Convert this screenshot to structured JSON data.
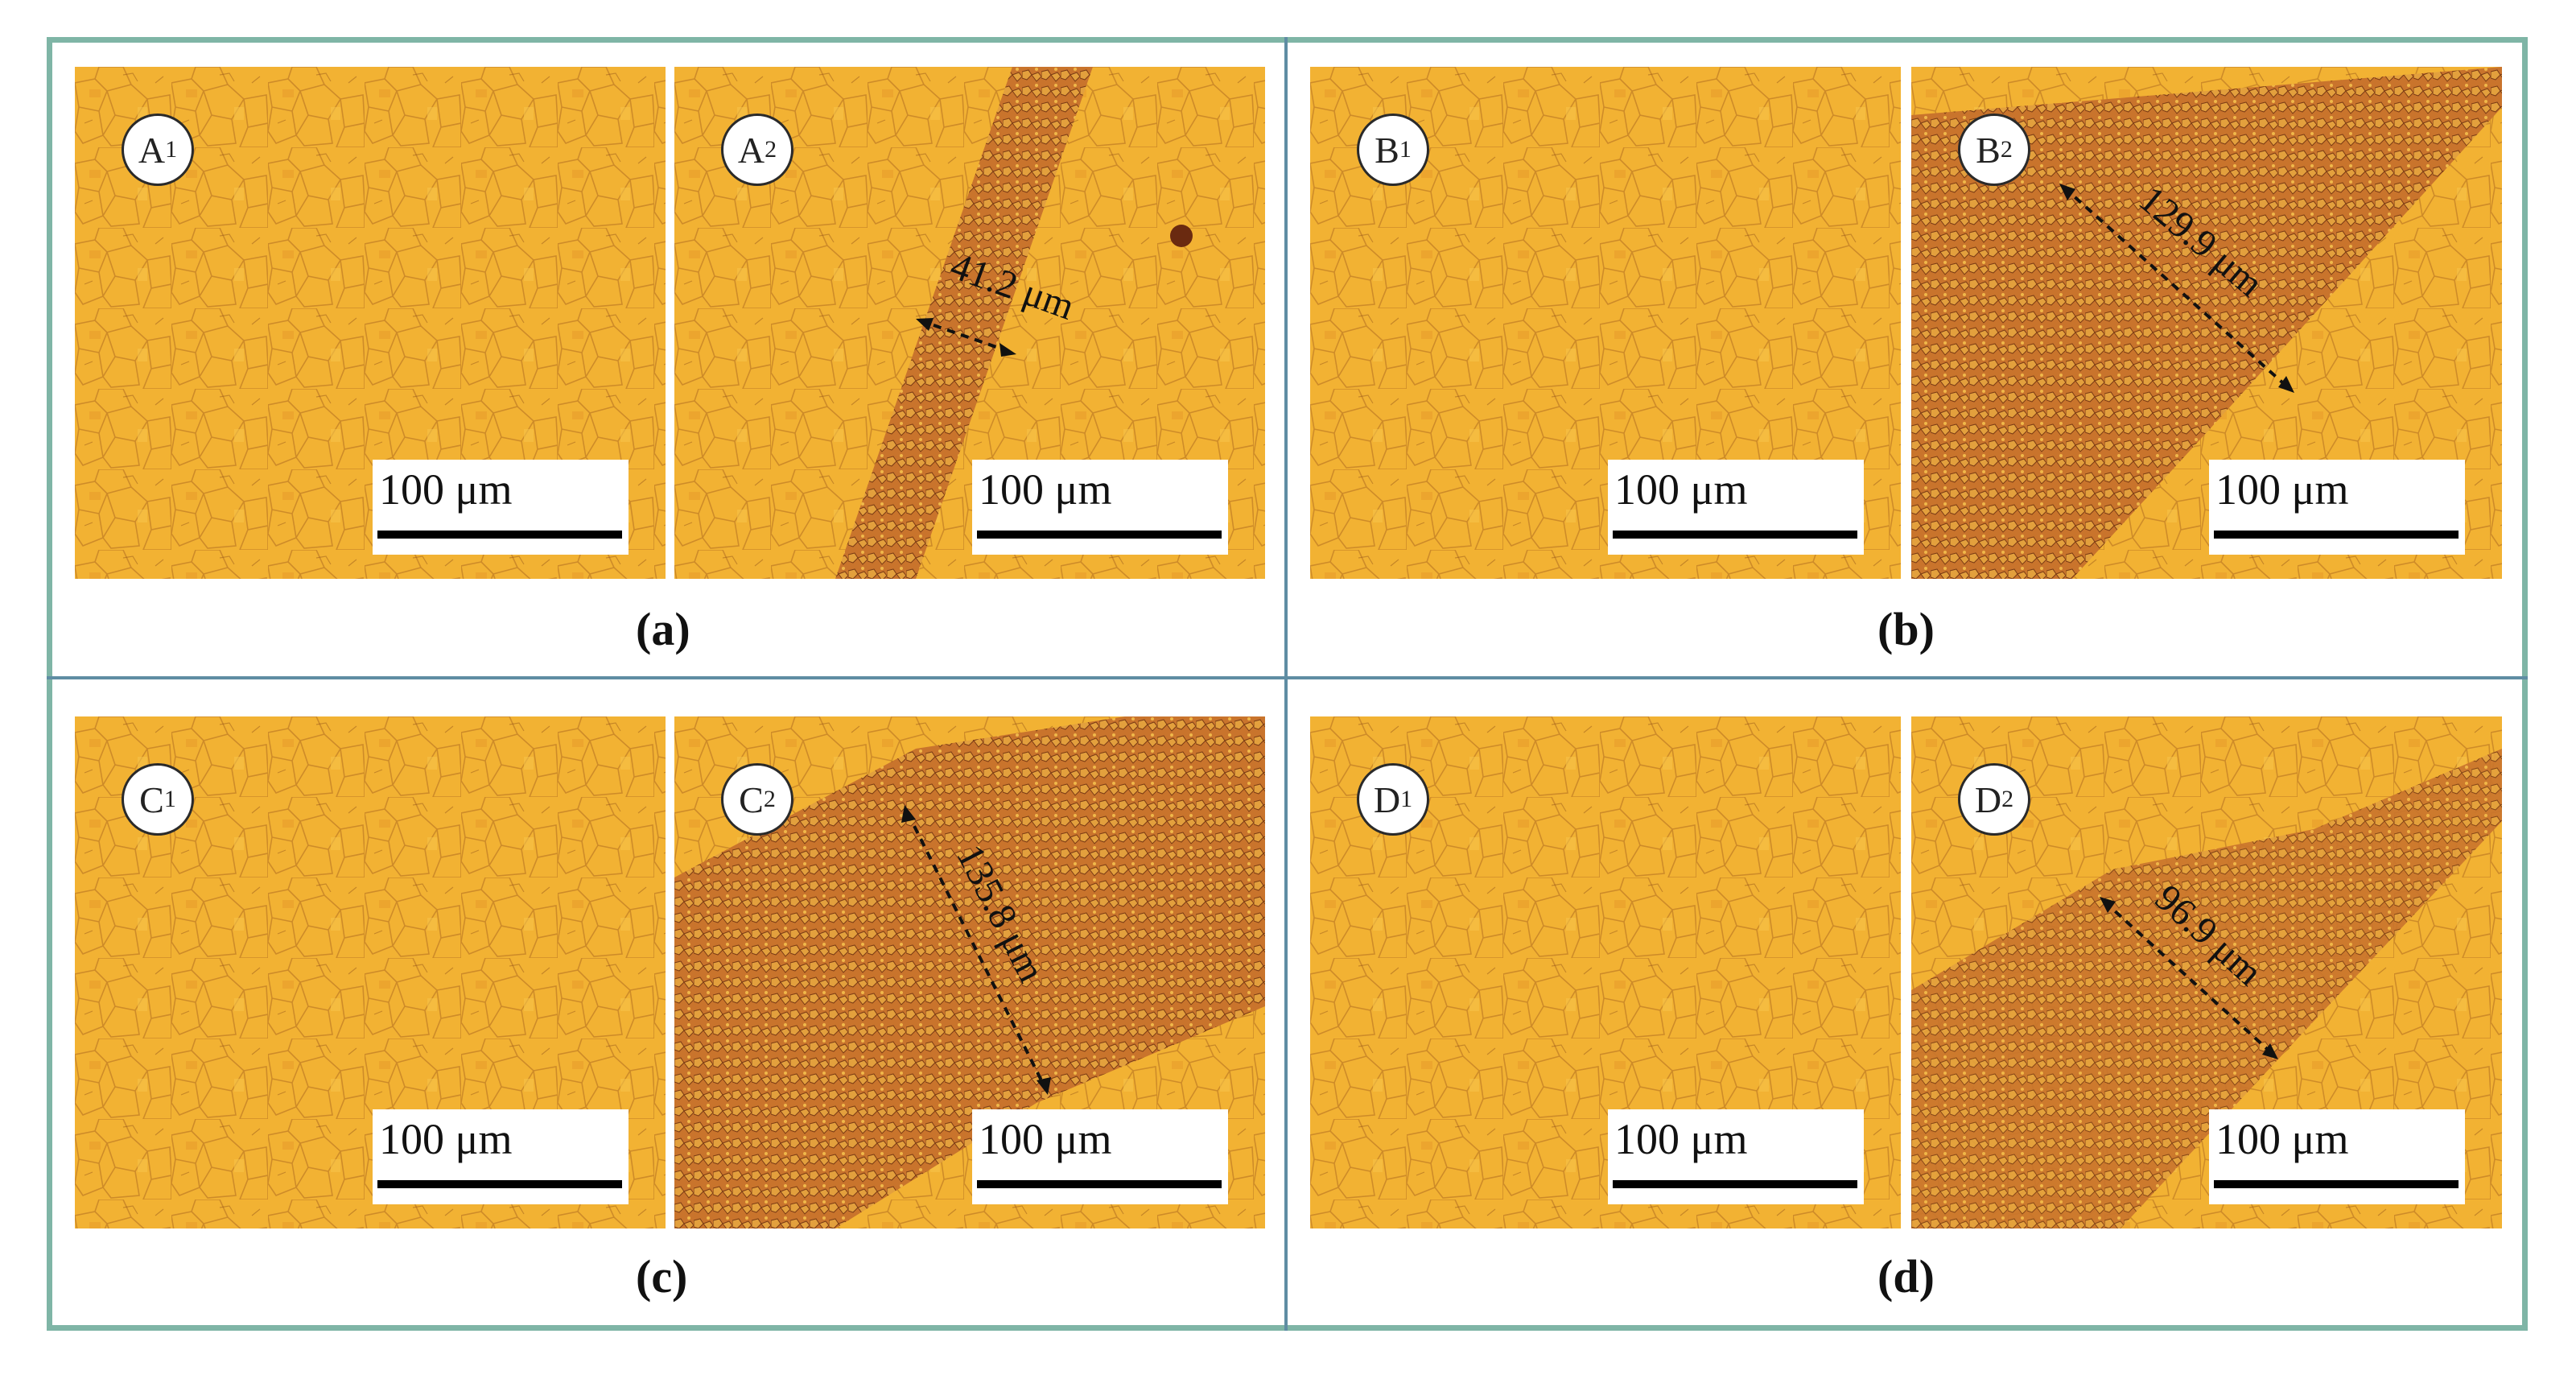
{
  "colors": {
    "frame": "#7fb5a6",
    "divider": "#5f8da3",
    "base_grain": "#f2b233",
    "dark_band": "#c46a2a"
  },
  "panels": {
    "a1": {
      "label": "A",
      "sub": "1",
      "scale": "100 μm"
    },
    "a2": {
      "label": "A",
      "sub": "2",
      "scale": "100 μm",
      "measure": "41.2 μm"
    },
    "b1": {
      "label": "B",
      "sub": "1",
      "scale": "100 μm"
    },
    "b2": {
      "label": "B",
      "sub": "2",
      "scale": "100 μm",
      "measure": "129.9 μm"
    },
    "c1": {
      "label": "C",
      "sub": "1",
      "scale": "100 μm"
    },
    "c2": {
      "label": "C",
      "sub": "2",
      "scale": "100 μm",
      "measure": "135.8 μm"
    },
    "d1": {
      "label": "D",
      "sub": "1",
      "scale": "100 μm"
    },
    "d2": {
      "label": "D",
      "sub": "2",
      "scale": "100 μm",
      "measure": "96.9 μm"
    }
  },
  "captions": {
    "a": "(a)",
    "b": "(b)",
    "c": "(c)",
    "d": "(d)"
  }
}
